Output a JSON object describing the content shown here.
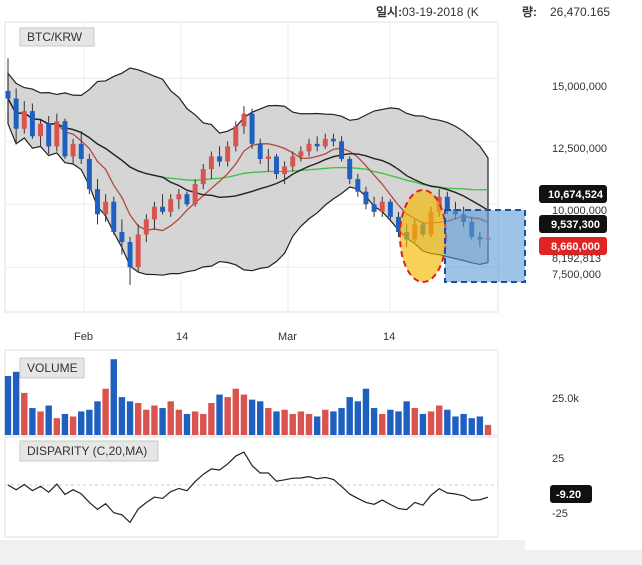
{
  "header": {
    "date_label": "일시:",
    "date_value": "03-19-2018 (K",
    "volume_label": "량:",
    "volume_value": "26,470.165"
  },
  "main_panel": {
    "symbol": "BTC/KRW",
    "y_ticks": [
      "15,000,000",
      "12,500,000",
      "7,500,000"
    ],
    "x_ticks": [
      "Feb",
      "14",
      "Mar",
      "14"
    ],
    "badges": [
      "10,674,524",
      "9,537,300",
      "8,660,000"
    ],
    "hidden_tick": "10,000,000",
    "hidden_tick2": "8,192,813"
  },
  "volume_panel": {
    "title": "VOLUME",
    "tick": "25.0k"
  },
  "disparity_panel": {
    "title": "DISPARITY (C,20,MA)",
    "ticks": [
      "25",
      "-25"
    ],
    "badge": "-9.20"
  },
  "colors": {
    "up": "#d9534f",
    "down": "#1f5fbf",
    "band_fill": "#d0d0d0",
    "ma_green": "#3fbf3f",
    "ma_red": "#b04a3a",
    "ma_black": "#222222",
    "highlight_orange": "#f5b800",
    "highlight_blue": "#5b9bd5"
  },
  "chart_data": {
    "type": "candlestick",
    "x_ticks": [
      "Feb",
      "14",
      "Mar",
      "14"
    ],
    "ylim": [
      6000000,
      17000000
    ],
    "candles": [
      [
        14500000,
        15800000,
        13600000,
        14200000
      ],
      [
        14200000,
        14600000,
        12400000,
        13000000
      ],
      [
        13000000,
        14100000,
        12800000,
        13700000
      ],
      [
        13700000,
        14000000,
        12600000,
        12700000
      ],
      [
        12700000,
        13400000,
        12300000,
        13200000
      ],
      [
        13200000,
        13500000,
        12000000,
        12300000
      ],
      [
        12300000,
        13600000,
        12100000,
        13300000
      ],
      [
        13300000,
        13400000,
        11800000,
        11900000
      ],
      [
        11900000,
        12600000,
        11600000,
        12400000
      ],
      [
        12400000,
        12900000,
        11600000,
        11800000
      ],
      [
        11800000,
        12000000,
        10400000,
        10600000
      ],
      [
        10600000,
        11000000,
        9200000,
        9600000
      ],
      [
        9600000,
        10400000,
        9300000,
        10100000
      ],
      [
        10100000,
        10300000,
        8800000,
        8900000
      ],
      [
        8900000,
        9400000,
        8000000,
        8500000
      ],
      [
        8500000,
        8700000,
        6800000,
        7500000
      ],
      [
        7500000,
        9200000,
        7300000,
        8800000
      ],
      [
        8800000,
        9600000,
        8500000,
        9400000
      ],
      [
        9400000,
        10100000,
        9000000,
        9900000
      ],
      [
        9900000,
        10400000,
        9600000,
        9700000
      ],
      [
        9700000,
        10400000,
        9500000,
        10200000
      ],
      [
        10200000,
        10600000,
        9800000,
        10400000
      ],
      [
        10400000,
        10500000,
        9900000,
        10000000
      ],
      [
        10000000,
        11000000,
        9900000,
        10800000
      ],
      [
        10800000,
        11600000,
        10600000,
        11400000
      ],
      [
        11400000,
        12100000,
        11000000,
        11900000
      ],
      [
        11900000,
        12300000,
        11500000,
        11700000
      ],
      [
        11700000,
        12500000,
        11500000,
        12300000
      ],
      [
        12300000,
        13300000,
        12100000,
        13100000
      ],
      [
        13100000,
        13900000,
        12800000,
        13600000
      ],
      [
        13600000,
        13800000,
        12200000,
        12400000
      ],
      [
        12400000,
        12600000,
        11600000,
        11800000
      ],
      [
        11800000,
        12200000,
        11300000,
        11900000
      ],
      [
        11900000,
        12000000,
        11000000,
        11200000
      ],
      [
        11200000,
        11700000,
        10800000,
        11500000
      ],
      [
        11500000,
        12100000,
        11300000,
        11900000
      ],
      [
        11900000,
        12300000,
        11700000,
        12100000
      ],
      [
        12100000,
        12600000,
        11900000,
        12400000
      ],
      [
        12400000,
        12700000,
        12100000,
        12300000
      ],
      [
        12300000,
        12800000,
        12200000,
        12600000
      ],
      [
        12600000,
        12800000,
        12300000,
        12500000
      ],
      [
        12500000,
        12700000,
        11700000,
        11800000
      ],
      [
        11800000,
        11900000,
        10800000,
        11000000
      ],
      [
        11000000,
        11200000,
        10300000,
        10500000
      ],
      [
        10500000,
        10700000,
        9800000,
        10000000
      ],
      [
        10000000,
        10300000,
        9500000,
        9700000
      ],
      [
        9700000,
        10300000,
        9500000,
        10100000
      ],
      [
        10100000,
        10200000,
        9400000,
        9500000
      ],
      [
        9500000,
        9700000,
        8700000,
        8900000
      ],
      [
        8900000,
        9200000,
        8300000,
        8600000
      ],
      [
        8600000,
        9400000,
        8500000,
        9200000
      ],
      [
        9200000,
        9300000,
        8700000,
        8800000
      ],
      [
        8800000,
        9900000,
        8700000,
        9700000
      ],
      [
        9700000,
        10600000,
        9500000,
        10300000
      ],
      [
        10300000,
        10500000,
        9600000,
        9800000
      ],
      [
        9800000,
        10100000,
        9400000,
        9600000
      ],
      [
        9600000,
        9900000,
        9100000,
        9300000
      ],
      [
        9300000,
        9500000,
        8600000,
        8700000
      ],
      [
        8700000,
        8900000,
        8300000,
        8600000
      ],
      [
        8600000,
        8900000,
        8400000,
        8660000
      ]
    ],
    "volume": [
      70,
      75,
      50,
      32,
      28,
      35,
      20,
      25,
      22,
      28,
      30,
      40,
      55,
      90,
      45,
      40,
      38,
      30,
      35,
      32,
      40,
      30,
      25,
      28,
      25,
      38,
      48,
      45,
      55,
      48,
      42,
      40,
      32,
      28,
      30,
      25,
      28,
      25,
      22,
      30,
      28,
      32,
      45,
      40,
      55,
      32,
      25,
      30,
      28,
      40,
      32,
      25,
      28,
      35,
      30,
      22,
      25,
      20,
      22,
      12
    ]
  }
}
